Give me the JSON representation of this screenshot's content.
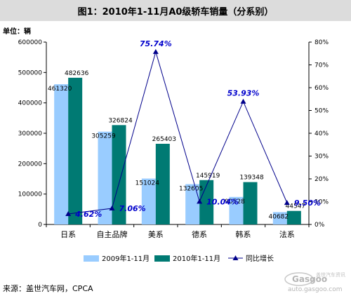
{
  "title_prefix": "图1：",
  "title": "2010年1-11月A0级轿车销量（分系别）",
  "source": "来源：盖世汽车网，CPCA",
  "watermark": {
    "brand": "Gasgoo",
    "cn": "盖世汽车资讯",
    "url": "auto.gasgoo.com"
  },
  "colors": {
    "bar_2009": "#99ccff",
    "bar_2010": "#007a73",
    "line": "#00008b",
    "growth_label": "#0000cc"
  },
  "chart_data": {
    "type": "bar",
    "unit_label": "单位：辆",
    "categories": [
      "日系",
      "自主品牌",
      "美系",
      "德系",
      "韩系",
      "法系"
    ],
    "series": [
      {
        "name": "2009年1-11月",
        "type": "bar",
        "axis": "left",
        "values": [
          461320,
          305259,
          151024,
          132605,
          90528,
          40682
        ]
      },
      {
        "name": "2010年1-11月",
        "type": "bar",
        "axis": "left",
        "values": [
          482636,
          326824,
          265403,
          145919,
          139348,
          44547
        ]
      },
      {
        "name": "同比增长",
        "type": "line",
        "axis": "right",
        "values": [
          4.62,
          7.06,
          75.74,
          10.04,
          53.93,
          9.5
        ]
      }
    ],
    "bar_labels_2009": [
      "461320",
      "305259",
      "151024",
      "132605",
      "90528",
      "40682"
    ],
    "bar_labels_2010": [
      "482636",
      "326824",
      "265403",
      "145919",
      "139348",
      "44547"
    ],
    "growth_labels": [
      "4.62%",
      "7.06%",
      "75.74%",
      "10.04%",
      "53.93%",
      "9.50%"
    ],
    "y_left": {
      "min": 0,
      "max": 600000,
      "ticks": [
        "0",
        "100000",
        "200000",
        "300000",
        "400000",
        "500000",
        "600000"
      ]
    },
    "y_right": {
      "min": 0,
      "max": 80,
      "ticks": [
        "0%",
        "10%",
        "20%",
        "30%",
        "40%",
        "50%",
        "60%",
        "70%",
        "80%"
      ]
    },
    "legend_position": "bottom",
    "grid": false
  }
}
